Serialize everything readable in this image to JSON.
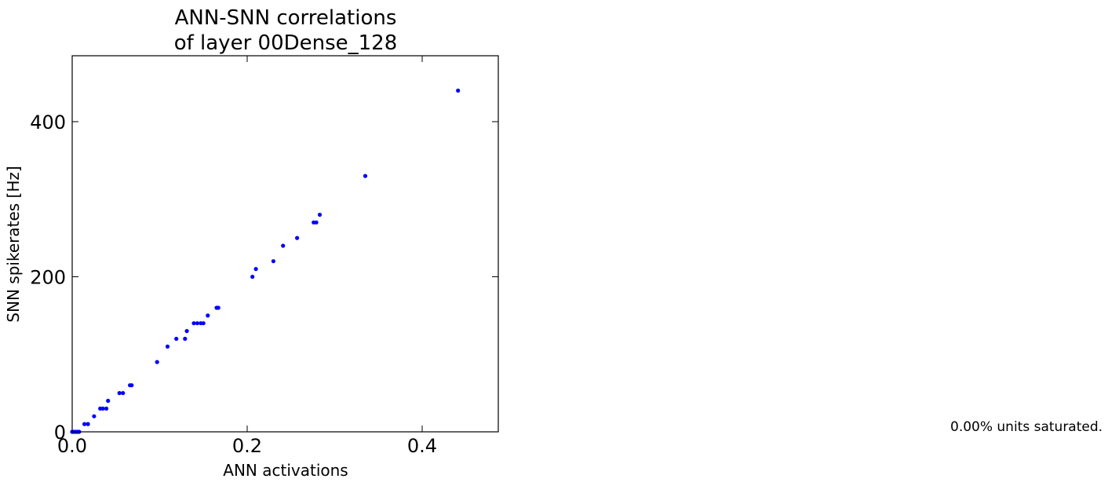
{
  "chart_data": {
    "type": "scatter",
    "title_line1": "ANN-SNN correlations",
    "title_line2": "of layer 00Dense_128",
    "xlabel": "ANN activations",
    "ylabel": "SNN spikerates [Hz]",
    "xlim": [
      0.0,
      0.487
    ],
    "ylim": [
      0,
      485
    ],
    "xticks": [
      0.0,
      0.2,
      0.4
    ],
    "xtick_labels": [
      "0.0",
      "0.2",
      "0.4"
    ],
    "yticks": [
      0,
      200,
      400
    ],
    "ytick_labels": [
      "0",
      "200",
      "400"
    ],
    "grid": false,
    "marker_color": "#0000ff",
    "points": [
      {
        "x": 0.0,
        "y": 0
      },
      {
        "x": 0.002,
        "y": 0
      },
      {
        "x": 0.004,
        "y": 0
      },
      {
        "x": 0.006,
        "y": 0
      },
      {
        "x": 0.008,
        "y": 0
      },
      {
        "x": 0.014,
        "y": 10
      },
      {
        "x": 0.018,
        "y": 10
      },
      {
        "x": 0.025,
        "y": 20
      },
      {
        "x": 0.032,
        "y": 30
      },
      {
        "x": 0.035,
        "y": 30
      },
      {
        "x": 0.039,
        "y": 30
      },
      {
        "x": 0.041,
        "y": 40
      },
      {
        "x": 0.054,
        "y": 50
      },
      {
        "x": 0.058,
        "y": 50
      },
      {
        "x": 0.066,
        "y": 60
      },
      {
        "x": 0.068,
        "y": 60
      },
      {
        "x": 0.097,
        "y": 90
      },
      {
        "x": 0.109,
        "y": 110
      },
      {
        "x": 0.119,
        "y": 120
      },
      {
        "x": 0.129,
        "y": 120
      },
      {
        "x": 0.131,
        "y": 130
      },
      {
        "x": 0.139,
        "y": 140
      },
      {
        "x": 0.143,
        "y": 140
      },
      {
        "x": 0.147,
        "y": 140
      },
      {
        "x": 0.15,
        "y": 140
      },
      {
        "x": 0.155,
        "y": 150
      },
      {
        "x": 0.165,
        "y": 160
      },
      {
        "x": 0.167,
        "y": 160
      },
      {
        "x": 0.206,
        "y": 200
      },
      {
        "x": 0.21,
        "y": 210
      },
      {
        "x": 0.23,
        "y": 220
      },
      {
        "x": 0.241,
        "y": 240
      },
      {
        "x": 0.257,
        "y": 250
      },
      {
        "x": 0.276,
        "y": 270
      },
      {
        "x": 0.279,
        "y": 270
      },
      {
        "x": 0.283,
        "y": 280
      },
      {
        "x": 0.335,
        "y": 330
      },
      {
        "x": 0.441,
        "y": 440
      }
    ]
  },
  "annotation": {
    "saturation_text": "0.00% units saturated."
  }
}
